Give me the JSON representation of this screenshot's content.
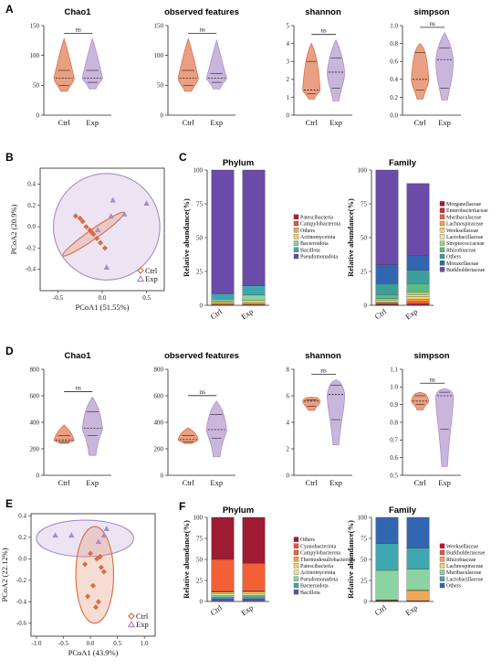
{
  "colors": {
    "ctrl": "#D96A45",
    "exp": "#A98BC4",
    "ctrl_fill": "#E89A7B",
    "exp_fill": "#C8B2DC"
  },
  "panels": [
    {
      "letter": "A",
      "violins": [
        {
          "title": "Chao1",
          "ylim": [
            0,
            150
          ],
          "ticks": [
            0,
            50,
            100,
            150
          ],
          "ns": "ns",
          "groups": [
            "Ctrl",
            "Exp"
          ],
          "ctrl": {
            "min": 40,
            "max": 128,
            "q1": 50,
            "median": 62,
            "q3": 75
          },
          "exp": {
            "min": 44,
            "max": 128,
            "q1": 55,
            "median": 62,
            "q3": 75
          }
        },
        {
          "title": "observed features",
          "ylim": [
            0,
            150
          ],
          "ticks": [
            0,
            50,
            100,
            150
          ],
          "ns": "ns",
          "groups": [
            "Ctrl",
            "Exp"
          ],
          "ctrl": {
            "min": 40,
            "max": 128,
            "q1": 50,
            "median": 62,
            "q3": 75
          },
          "exp": {
            "min": 44,
            "max": 125,
            "q1": 55,
            "median": 62,
            "q3": 70
          }
        },
        {
          "title": "shannon",
          "ylim": [
            0,
            5
          ],
          "ticks": [
            0,
            1,
            2,
            3,
            4,
            5
          ],
          "ns": "ns",
          "groups": [
            "Ctrl",
            "Exp"
          ],
          "ctrl": {
            "min": 0.9,
            "max": 4.0,
            "q1": 1.2,
            "median": 1.4,
            "q3": 3.0
          },
          "exp": {
            "min": 0.8,
            "max": 4.2,
            "q1": 1.5,
            "median": 2.4,
            "q3": 3.2
          }
        },
        {
          "title": "simpson",
          "ylim": [
            0,
            1
          ],
          "ticks": [
            0.0,
            0.2,
            0.4,
            0.6,
            0.8,
            1.0
          ],
          "ns": "ns",
          "groups": [
            "Ctrl",
            "Exp"
          ],
          "ctrl": {
            "min": 0.18,
            "max": 0.8,
            "q1": 0.28,
            "median": 0.4,
            "q3": 0.7
          },
          "exp": {
            "min": 0.17,
            "max": 0.92,
            "q1": 0.3,
            "median": 0.62,
            "q3": 0.75
          }
        }
      ]
    },
    {
      "letter": "D",
      "violins": [
        {
          "title": "Chao1",
          "ylim": [
            0,
            800
          ],
          "ticks": [
            0,
            200,
            400,
            600,
            800
          ],
          "ns": "ns",
          "groups": [
            "Ctrl",
            "Exp"
          ],
          "ctrl": {
            "min": 240,
            "max": 380,
            "q1": 250,
            "median": 265,
            "q3": 300
          },
          "exp": {
            "min": 150,
            "max": 590,
            "q1": 300,
            "median": 355,
            "q3": 480
          }
        },
        {
          "title": "observed features",
          "ylim": [
            0,
            800
          ],
          "ticks": [
            0,
            200,
            400,
            600,
            800
          ],
          "ns": "ns",
          "groups": [
            "Ctrl",
            "Exp"
          ],
          "ctrl": {
            "min": 240,
            "max": 360,
            "q1": 250,
            "median": 270,
            "q3": 300
          },
          "exp": {
            "min": 140,
            "max": 560,
            "q1": 280,
            "median": 345,
            "q3": 460
          }
        },
        {
          "title": "shannon",
          "ylim": [
            0,
            8
          ],
          "ticks": [
            0,
            2,
            4,
            6,
            8
          ],
          "ns": "ns",
          "groups": [
            "Ctrl",
            "Exp"
          ],
          "ctrl": {
            "min": 4.9,
            "max": 5.9,
            "q1": 5.2,
            "median": 5.6,
            "q3": 5.7
          },
          "exp": {
            "min": 2.3,
            "max": 7.2,
            "q1": 4.2,
            "median": 6.1,
            "q3": 6.8
          }
        },
        {
          "title": "simpson",
          "ylim": [
            0.5,
            1.1
          ],
          "ticks": [
            0.5,
            0.6,
            0.7,
            0.8,
            0.9,
            1.0,
            1.1
          ],
          "ns": "ns",
          "groups": [
            "Ctrl",
            "Exp"
          ],
          "ctrl": {
            "min": 0.87,
            "max": 0.97,
            "q1": 0.9,
            "median": 0.92,
            "q3": 0.95
          },
          "exp": {
            "min": 0.55,
            "max": 0.99,
            "q1": 0.76,
            "median": 0.95,
            "q3": 0.97
          }
        }
      ]
    }
  ],
  "pcoa": [
    {
      "letter": "B",
      "xlabel": "PCoA1 (51.55%)",
      "ylabel": "PCoA2 (20.9%)",
      "xlim": [
        -0.7,
        0.7
      ],
      "ylim": [
        -0.6,
        0.55
      ],
      "xticks": [
        "-0.5",
        "0.0",
        "0.5"
      ],
      "xtickv": [
        -0.5,
        0,
        0.5
      ],
      "yticks": [
        "-0.4",
        "-0.2",
        "0.0",
        "0.2",
        "0.4"
      ],
      "ytickv": [
        -0.4,
        -0.2,
        0,
        0.2,
        0.4
      ],
      "legend": [
        "Ctrl",
        "Exp"
      ],
      "ctrl": [
        [
          -0.3,
          0.1
        ],
        [
          -0.22,
          0.05
        ],
        [
          -0.18,
          0.0
        ],
        [
          -0.14,
          -0.03
        ],
        [
          -0.1,
          -0.07
        ],
        [
          -0.06,
          -0.11
        ],
        [
          -0.02,
          -0.15
        ],
        [
          0.03,
          -0.2
        ],
        [
          -0.25,
          0.08
        ],
        [
          -0.12,
          -0.05
        ]
      ],
      "exp": [
        [
          0.12,
          0.25
        ],
        [
          0.25,
          0.12
        ],
        [
          0.5,
          0.22
        ],
        [
          0.1,
          0.1
        ],
        [
          -0.05,
          -0.03
        ],
        [
          0.05,
          -0.38
        ]
      ],
      "ctrl_ellipse": {
        "cx": -0.1,
        "cy": -0.07,
        "rx": 0.42,
        "ry": 0.045,
        "angle": -35
      },
      "exp_ellipse": {
        "cx": 0.05,
        "cy": 0.0,
        "rx": 0.6,
        "ry": 0.5,
        "angle": -20
      }
    },
    {
      "letter": "E",
      "xlabel": "PCoA1 (43.9%)",
      "ylabel": "PCoA2 (22.12%)",
      "xlim": [
        -1.1,
        1.2
      ],
      "ylim": [
        -0.72,
        0.42
      ],
      "xticks": [
        "-1.0",
        "-0.5",
        "0.0",
        "0.5",
        "1.0"
      ],
      "xtickv": [
        -1,
        -0.5,
        0,
        0.5,
        1
      ],
      "yticks": [
        "-0.6",
        "-0.4",
        "-0.2",
        "0.0",
        "0.2",
        "0.4"
      ],
      "ytickv": [
        -0.6,
        -0.4,
        -0.2,
        0,
        0.2,
        0.4
      ],
      "legend": [
        "Ctrl",
        "Exp"
      ],
      "ctrl": [
        [
          0.0,
          0.05
        ],
        [
          0.12,
          0.0
        ],
        [
          -0.1,
          -0.05
        ],
        [
          0.2,
          -0.08
        ],
        [
          0.25,
          -0.12
        ],
        [
          0.05,
          -0.25
        ],
        [
          -0.05,
          -0.35
        ],
        [
          0.15,
          -0.4
        ],
        [
          0.1,
          -0.45
        ],
        [
          0.18,
          0.02
        ]
      ],
      "exp": [
        [
          -0.65,
          0.22
        ],
        [
          -0.35,
          0.22
        ],
        [
          0.15,
          0.16
        ],
        [
          0.25,
          0.22
        ],
        [
          0.3,
          0.28
        ]
      ],
      "ctrl_ellipse": {
        "cx": 0.08,
        "cy": -0.15,
        "rx": 0.35,
        "ry": 0.45,
        "angle": 0
      },
      "exp_ellipse": {
        "cx": -0.1,
        "cy": 0.19,
        "rx": 0.9,
        "ry": 0.17,
        "angle": 0
      }
    }
  ],
  "bars": [
    {
      "letter": "C",
      "blocks": [
        {
          "title": "Phylum",
          "ylabel": "Relative abundance(%)",
          "ylim": [
            0,
            100
          ],
          "ticks": [
            0,
            25,
            50,
            75,
            100
          ],
          "groups": [
            "Ctrl",
            "Exp"
          ],
          "legend": [
            "Patescibacteria",
            "Campylobacterota",
            "Others",
            "Actinomycetota",
            "Bacteroidota",
            "Bacillota",
            "Pseudomonadota"
          ],
          "legend_colors": [
            "#C8102E",
            "#E8543F",
            "#F2A65A",
            "#F4D35E",
            "#8BD3A0",
            "#3FA7B0",
            "#6A4BA8"
          ],
          "stack": [
            {
              "name": "Patescibacteria",
              "values": [
                0.3,
                0.3
              ]
            },
            {
              "name": "Campylobacterota",
              "values": [
                0.4,
                0.4
              ]
            },
            {
              "name": "Others",
              "values": [
                1.3,
                1.3
              ]
            },
            {
              "name": "Actinomycetota",
              "values": [
                1.0,
                1.5
              ]
            },
            {
              "name": "Bacteroidota",
              "values": [
                1.5,
                4
              ]
            },
            {
              "name": "Bacillota",
              "values": [
                4,
                7
              ]
            },
            {
              "name": "Pseudomonadota",
              "values": [
                91.5,
                85.5
              ]
            }
          ]
        },
        {
          "title": "Family",
          "ylabel": "Relative abundance(%)",
          "ylim": [
            0,
            100
          ],
          "ticks": [
            0,
            25,
            50,
            75,
            100
          ],
          "groups": [
            "Ctrl",
            "Exp"
          ],
          "legend": [
            "Morganellaceae",
            "Enterobacteriaceae",
            "Muribaculaceae",
            "Lachnospiraceae",
            "Weeksellaceae",
            "Lactobacillaceae",
            "Streptococcaceae",
            "Rhizobiaceae",
            "Others",
            "Moraxellaceae",
            "Burkholderiaceae"
          ],
          "legend_colors": [
            "#9E1B32",
            "#D7263D",
            "#F46036",
            "#F9A03F",
            "#F6D55C",
            "#EAE2B7",
            "#9BD770",
            "#5BBA8A",
            "#3C9D9B",
            "#3366B0",
            "#6A4BA8"
          ],
          "stack": [
            {
              "name": "Morganellaceae",
              "values": [
                0.3,
                0.5
              ]
            },
            {
              "name": "Enterobacteriaceae",
              "values": [
                0.4,
                0.8
              ]
            },
            {
              "name": "Muribaculaceae",
              "values": [
                0.6,
                1.5
              ]
            },
            {
              "name": "Lachnospiraceae",
              "values": [
                0.7,
                1.7
              ]
            },
            {
              "name": "Weeksellaceae",
              "values": [
                0.5,
                2
              ]
            },
            {
              "name": "Lactobacillaceae",
              "values": [
                1,
                1.5
              ]
            },
            {
              "name": "Streptococcaceae",
              "values": [
                1.5,
                2
              ]
            },
            {
              "name": "Rhizobiaceae",
              "values": [
                3,
                6
              ]
            },
            {
              "name": "Others",
              "values": [
                8,
                10
              ]
            },
            {
              "name": "Moraxellaceae",
              "values": [
                14,
                11
              ]
            },
            {
              "name": "Burkholderiaceae",
              "values": [
                70,
                53
              ]
            }
          ]
        }
      ]
    },
    {
      "letter": "F",
      "blocks": [
        {
          "title": "Phylum",
          "ylabel": "Relative abundance(%)",
          "ylim": [
            0,
            100
          ],
          "ticks": [
            0,
            25,
            50,
            75,
            100
          ],
          "groups": [
            "Ctrl",
            "Exp"
          ],
          "legend": [
            "Others",
            "Cyanobacteriota",
            "Campylobacterota",
            "Thermodesulfobacteriota",
            "Patescibacteria",
            "Actinomycetota",
            "Pseudomonadota",
            "Bacteroidota",
            "Bacillota"
          ],
          "legend_colors": [
            "#9E1B32",
            "#E8543F",
            "#F46036",
            "#F9A03F",
            "#F6D55C",
            "#EAE2B7",
            "#8BD3A0",
            "#3FA7B0",
            "#6A4BA8"
          ],
          "stack": [
            {
              "name": "Bacillota",
              "values": [
                3,
                3
              ]
            },
            {
              "name": "Bacteroidota",
              "values": [
                2,
                2.5
              ]
            },
            {
              "name": "Pseudomonadota",
              "values": [
                2,
                2
              ]
            },
            {
              "name": "Actinomycetota",
              "values": [
                2,
                2
              ]
            },
            {
              "name": "Patescibacteria",
              "values": [
                2,
                2
              ]
            },
            {
              "name": "Thermodesulfobacteriota",
              "values": [
                0.5,
                0.5
              ]
            },
            {
              "name": "Cyanobacteriota",
              "values": [
                0.5,
                0.5
              ]
            },
            {
              "name": "Campylobacterota",
              "values": [
                38,
                33
              ]
            },
            {
              "name": "Others",
              "values": [
                50,
                54.5
              ]
            }
          ]
        },
        {
          "title": "Family",
          "ylabel": "Relative abundance(%)",
          "ylim": [
            0,
            100
          ],
          "ticks": [
            0,
            25,
            50,
            75,
            100
          ],
          "groups": [
            "Ctrl",
            "Exp"
          ],
          "legend": [
            "Weeksellaceae",
            "Burkholderiaceae",
            "Rhizobiaceae",
            "Lachnospiraceae",
            "Muribaculaceae",
            "Lactobacillaceae",
            "Others"
          ],
          "legend_colors": [
            "#C8102E",
            "#E8543F",
            "#F2A65A",
            "#F4D35E",
            "#8BD3A0",
            "#3FA7B0",
            "#3366B0"
          ],
          "stack": [
            {
              "name": "Weeksellaceae",
              "values": [
                0.5,
                0.5
              ]
            },
            {
              "name": "Burkholderiaceae",
              "values": [
                0.5,
                0.5
              ]
            },
            {
              "name": "Rhizobiaceae",
              "values": [
                0.5,
                12
              ]
            },
            {
              "name": "Lachnospiraceae",
              "values": [
                0.5,
                0.5
              ]
            },
            {
              "name": "Muribaculaceae",
              "values": [
                35,
                25
              ]
            },
            {
              "name": "Lactobacillaceae",
              "values": [
                32,
                25
              ]
            },
            {
              "name": "Others",
              "values": [
                31,
                36.5
              ]
            }
          ]
        }
      ]
    }
  ]
}
